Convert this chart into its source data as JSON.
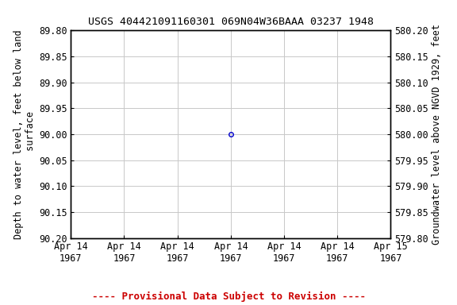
{
  "title": "USGS 404421091160301 069N04W36BAAA 03237 1948",
  "ylabel_left": "Depth to water level, feet below land\n surface",
  "ylabel_right": "Groundwater level above NGVD 1929, feet",
  "ylim_left": [
    90.2,
    89.8
  ],
  "ylim_right": [
    579.8,
    580.2
  ],
  "yticks_left": [
    89.8,
    89.85,
    89.9,
    89.95,
    90.0,
    90.05,
    90.1,
    90.15,
    90.2
  ],
  "yticks_right": [
    579.8,
    579.85,
    579.9,
    579.95,
    580.0,
    580.05,
    580.1,
    580.15,
    580.2
  ],
  "ytick_labels_left": [
    "89.80",
    "89.85",
    "89.90",
    "89.95",
    "90.00",
    "90.05",
    "90.10",
    "90.15",
    "90.20"
  ],
  "ytick_labels_right": [
    "579.80",
    "579.85",
    "579.90",
    "579.95",
    "580.00",
    "580.05",
    "580.10",
    "580.15",
    "580.20"
  ],
  "data_x": [
    0.5
  ],
  "data_y": [
    90.0
  ],
  "data_color": "#0000cc",
  "xlim": [
    0.0,
    1.0
  ],
  "xtick_positions": [
    0.0,
    0.1667,
    0.3333,
    0.5,
    0.6667,
    0.8333,
    1.0
  ],
  "xtick_labels": [
    "Apr 14\n1967",
    "Apr 14\n1967",
    "Apr 14\n1967",
    "Apr 14\n1967",
    "Apr 14\n1967",
    "Apr 14\n1967",
    "Apr 15\n1967"
  ],
  "provisional_text": "---- Provisional Data Subject to Revision ----",
  "provisional_color": "#cc0000",
  "background_color": "#ffffff",
  "grid_color": "#c8c8c8",
  "font_family": "monospace",
  "title_fontsize": 9.5,
  "axis_label_fontsize": 8.5,
  "tick_fontsize": 8.5,
  "provisional_fontsize": 9,
  "fig_width": 5.76,
  "fig_height": 3.84,
  "fig_dpi": 100
}
